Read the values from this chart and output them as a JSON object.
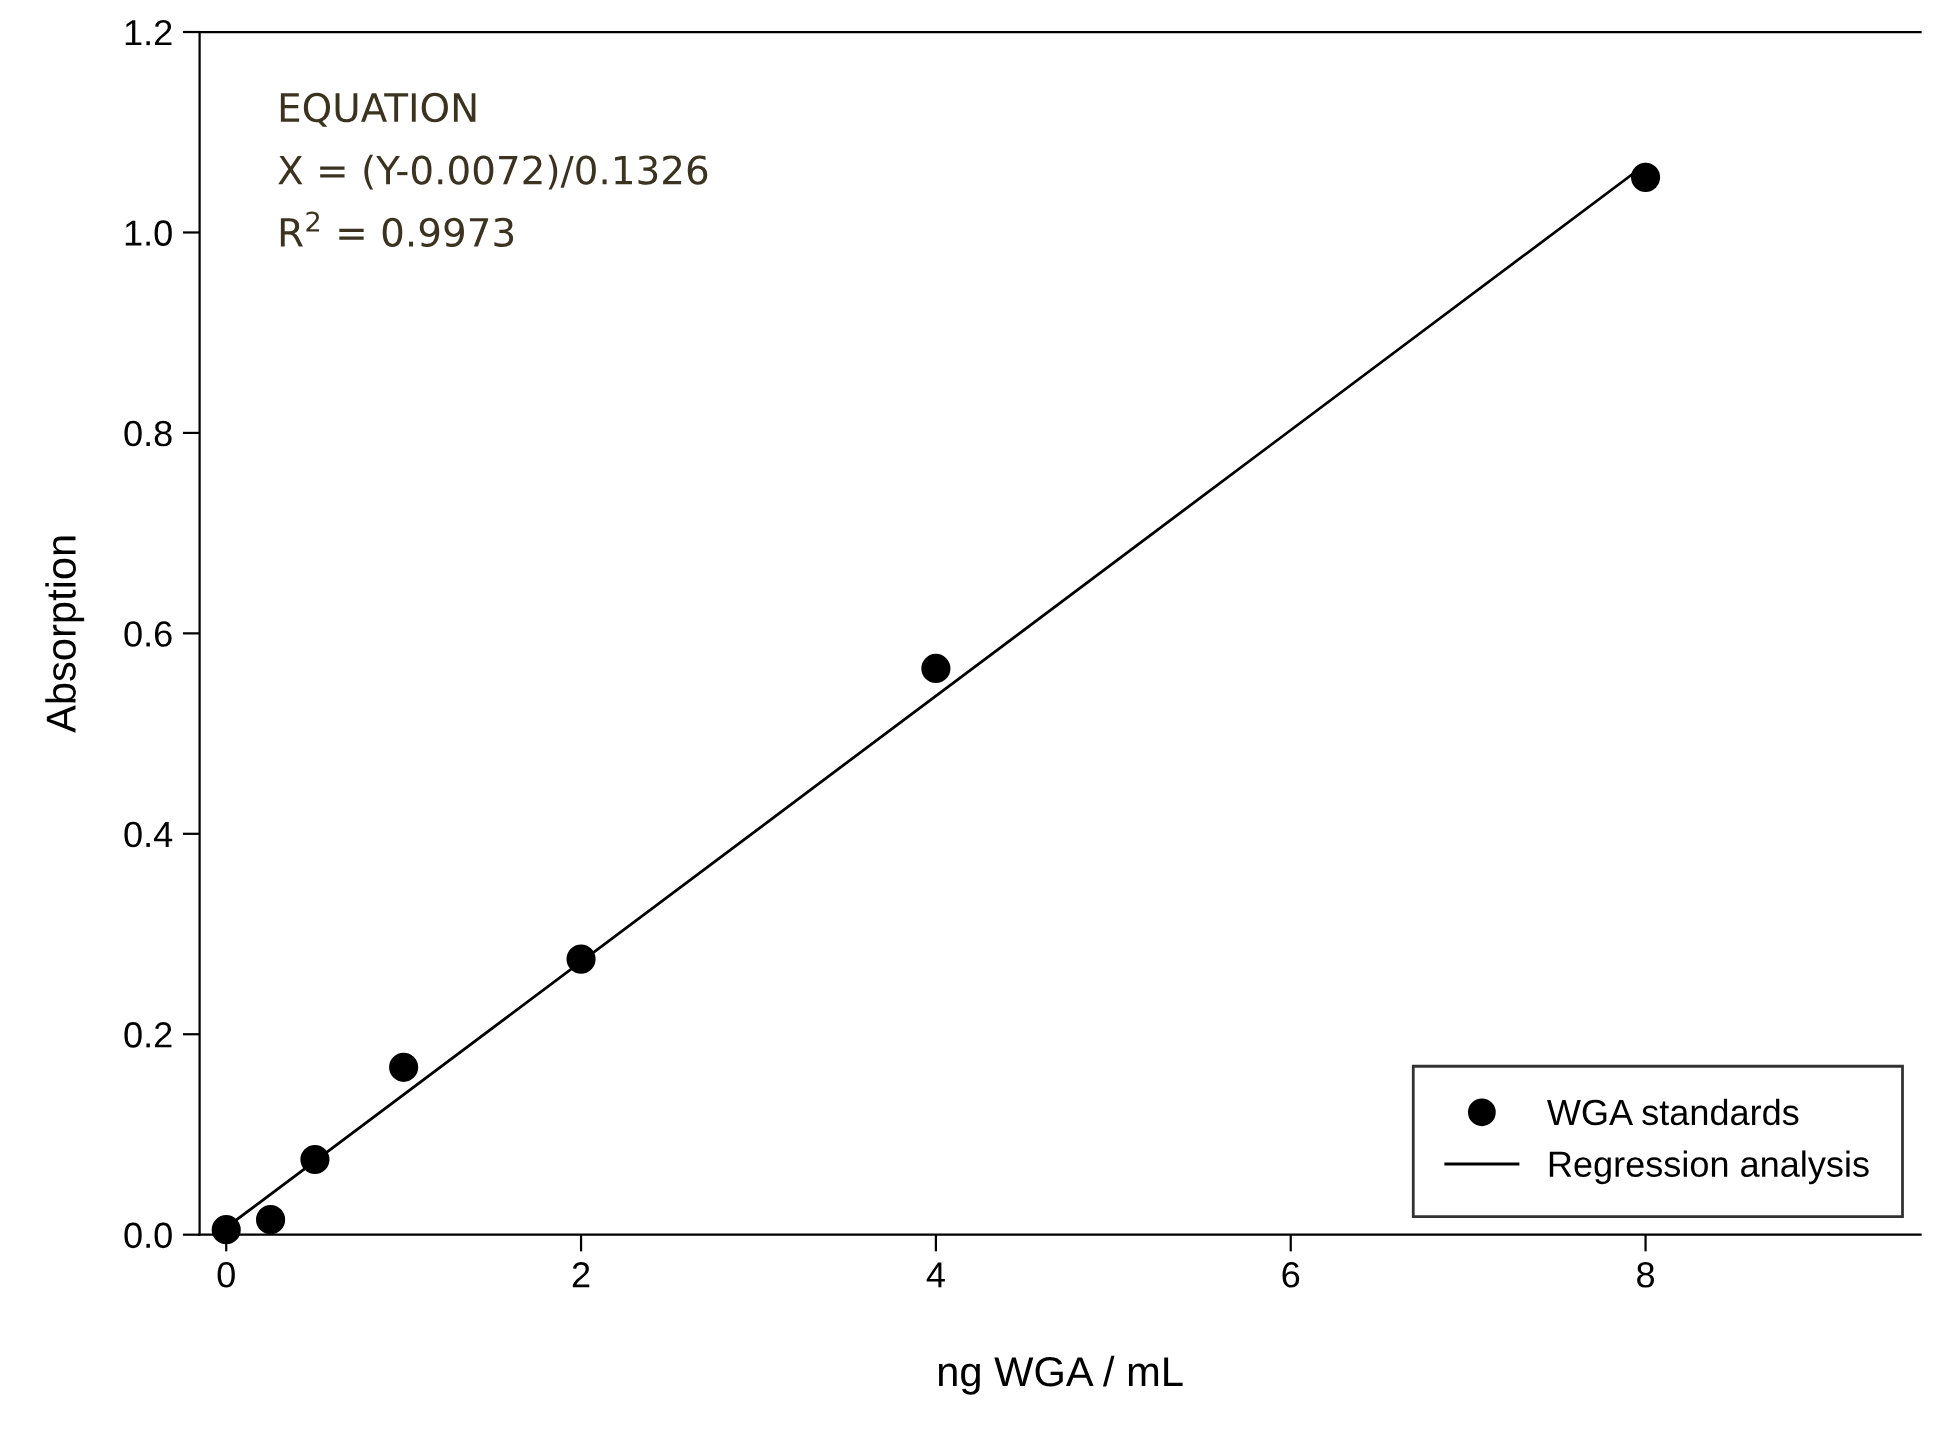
{
  "chart_data": {
    "type": "scatter",
    "xlabel": "ng WGA / mL",
    "ylabel": "Absorption",
    "series": [
      {
        "name": "WGA standards",
        "color": "#000000",
        "marker": "circle",
        "x": [
          0,
          0.25,
          0.5,
          1,
          2,
          4,
          8
        ],
        "values": [
          0.005,
          0.015,
          0.075,
          0.167,
          0.275,
          0.565,
          1.055
        ]
      },
      {
        "name": "Regression analysis",
        "type": "line",
        "color": "#000000",
        "marker": "none",
        "line_style": "solid",
        "x": [
          0,
          8
        ],
        "values": [
          0.0072,
          1.068
        ]
      }
    ],
    "xlim": [
      -0.15,
      9.55
    ],
    "xticks": [
      0,
      2,
      4,
      6,
      8
    ],
    "ylim": [
      0,
      1.2
    ],
    "yticks": [
      {
        "value": 0,
        "label": "0.0"
      },
      {
        "value": 0.2,
        "label": "0.2"
      },
      {
        "value": 0.4,
        "label": "0.4"
      },
      {
        "value": 0.6,
        "label": "0.6"
      },
      {
        "value": 0.8,
        "label": "0.8"
      },
      {
        "value": 1.0,
        "label": "1.0"
      },
      {
        "value": 1.2,
        "label": "1.2"
      }
    ],
    "annotations": [
      "EQUATION",
      "X = (Y-0.0072)/0.1326",
      "R$^{2}$ = 0.9973"
    ],
    "legend": "bottom right",
    "grid": false
  }
}
